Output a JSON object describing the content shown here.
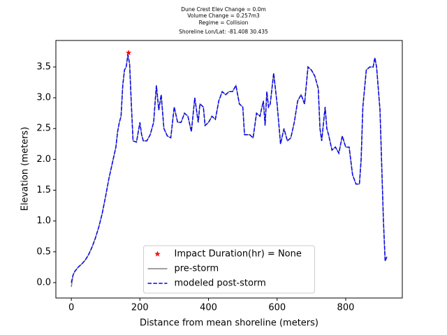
{
  "chart_data": {
    "type": "line",
    "title": [
      "Dune Crest Elev Change = 0.0m",
      "Volume Change = 0.257m3",
      "Regime = Collision",
      "Shoreline Lon/Lat: -81.408 30.435"
    ],
    "xlabel": "Distance from mean shoreline (meters)",
    "ylabel": "Elevation (meters)",
    "xlim": [
      -45,
      965
    ],
    "ylim": [
      -0.25,
      3.93
    ],
    "xticks": [
      0,
      200,
      400,
      600,
      800
    ],
    "yticks": [
      {
        "value": 0,
        "label": "0.0"
      },
      0.5,
      {
        "value": 1,
        "label": "1.0"
      },
      1.5,
      {
        "value": 2,
        "label": "2.0"
      },
      2.5,
      {
        "value": 3,
        "label": "3.0"
      },
      3.5
    ],
    "legend": "lower center",
    "x": [
      0,
      5,
      10,
      20,
      30,
      40,
      50,
      60,
      70,
      80,
      90,
      100,
      110,
      120,
      130,
      135,
      140,
      145,
      150,
      155,
      160,
      165,
      170,
      175,
      180,
      190,
      200,
      205,
      210,
      220,
      230,
      240,
      248,
      255,
      262,
      270,
      280,
      290,
      300,
      310,
      320,
      330,
      340,
      350,
      360,
      370,
      375,
      385,
      390,
      400,
      410,
      420,
      430,
      440,
      450,
      460,
      470,
      480,
      490,
      500,
      505,
      520,
      530,
      540,
      550,
      560,
      565,
      570,
      575,
      580,
      590,
      600,
      610,
      620,
      630,
      640,
      650,
      660,
      670,
      680,
      690,
      700,
      710,
      720,
      725,
      730,
      740,
      745,
      750,
      760,
      770,
      780,
      790,
      800,
      810,
      820,
      830,
      840,
      845,
      850,
      860,
      870,
      880,
      885,
      890,
      900,
      910,
      915,
      920
    ],
    "series": [
      {
        "name": "Impact Duration(hr) = None",
        "color": "#ff0000",
        "marker": "star",
        "x": [
          167
        ],
        "values": [
          3.73
        ]
      },
      {
        "name": "pre-storm",
        "color": "#808080",
        "style": "solid",
        "values": [
          -0.07,
          0.12,
          0.18,
          0.25,
          0.3,
          0.36,
          0.45,
          0.57,
          0.72,
          0.9,
          1.12,
          1.4,
          1.7,
          1.95,
          2.2,
          2.45,
          2.6,
          2.7,
          3.2,
          3.45,
          3.5,
          3.7,
          3.55,
          2.9,
          2.3,
          2.28,
          2.6,
          2.4,
          2.3,
          2.3,
          2.4,
          2.6,
          3.2,
          2.8,
          3.05,
          2.5,
          2.38,
          2.35,
          2.85,
          2.6,
          2.6,
          2.75,
          2.7,
          2.45,
          3.0,
          2.6,
          2.9,
          2.85,
          2.55,
          2.6,
          2.7,
          2.65,
          2.95,
          3.1,
          3.05,
          3.1,
          3.1,
          3.2,
          2.9,
          2.85,
          2.4,
          2.4,
          2.35,
          2.75,
          2.7,
          2.95,
          2.55,
          3.1,
          2.85,
          2.9,
          3.4,
          2.9,
          2.25,
          2.5,
          2.3,
          2.35,
          2.6,
          2.95,
          3.05,
          2.9,
          3.5,
          3.45,
          3.35,
          3.15,
          2.5,
          2.3,
          2.85,
          2.5,
          2.4,
          2.15,
          2.2,
          2.1,
          2.38,
          2.2,
          2.2,
          1.75,
          1.6,
          1.6,
          2.0,
          2.85,
          3.45,
          3.5,
          3.5,
          3.65,
          3.5,
          2.8,
          1.0,
          0.35,
          0.42
        ]
      },
      {
        "name": "modeled post-storm",
        "color": "#0000ff",
        "style": "dashed",
        "values": [
          0.0,
          0.12,
          0.18,
          0.25,
          0.3,
          0.36,
          0.45,
          0.57,
          0.72,
          0.9,
          1.12,
          1.4,
          1.7,
          1.95,
          2.2,
          2.45,
          2.6,
          2.7,
          3.2,
          3.45,
          3.5,
          3.7,
          3.55,
          2.9,
          2.3,
          2.28,
          2.6,
          2.4,
          2.3,
          2.3,
          2.4,
          2.6,
          3.2,
          2.8,
          3.05,
          2.5,
          2.38,
          2.35,
          2.85,
          2.6,
          2.6,
          2.75,
          2.7,
          2.45,
          3.0,
          2.6,
          2.9,
          2.85,
          2.55,
          2.6,
          2.7,
          2.65,
          2.95,
          3.1,
          3.05,
          3.1,
          3.1,
          3.2,
          2.9,
          2.85,
          2.4,
          2.4,
          2.35,
          2.75,
          2.7,
          2.95,
          2.55,
          3.1,
          2.85,
          2.9,
          3.4,
          2.9,
          2.25,
          2.5,
          2.3,
          2.35,
          2.6,
          2.95,
          3.05,
          2.9,
          3.5,
          3.45,
          3.35,
          3.15,
          2.5,
          2.3,
          2.85,
          2.5,
          2.4,
          2.15,
          2.2,
          2.1,
          2.38,
          2.2,
          2.2,
          1.75,
          1.6,
          1.6,
          2.0,
          2.85,
          3.45,
          3.5,
          3.5,
          3.65,
          3.5,
          2.8,
          1.0,
          0.35,
          0.42
        ]
      }
    ]
  }
}
